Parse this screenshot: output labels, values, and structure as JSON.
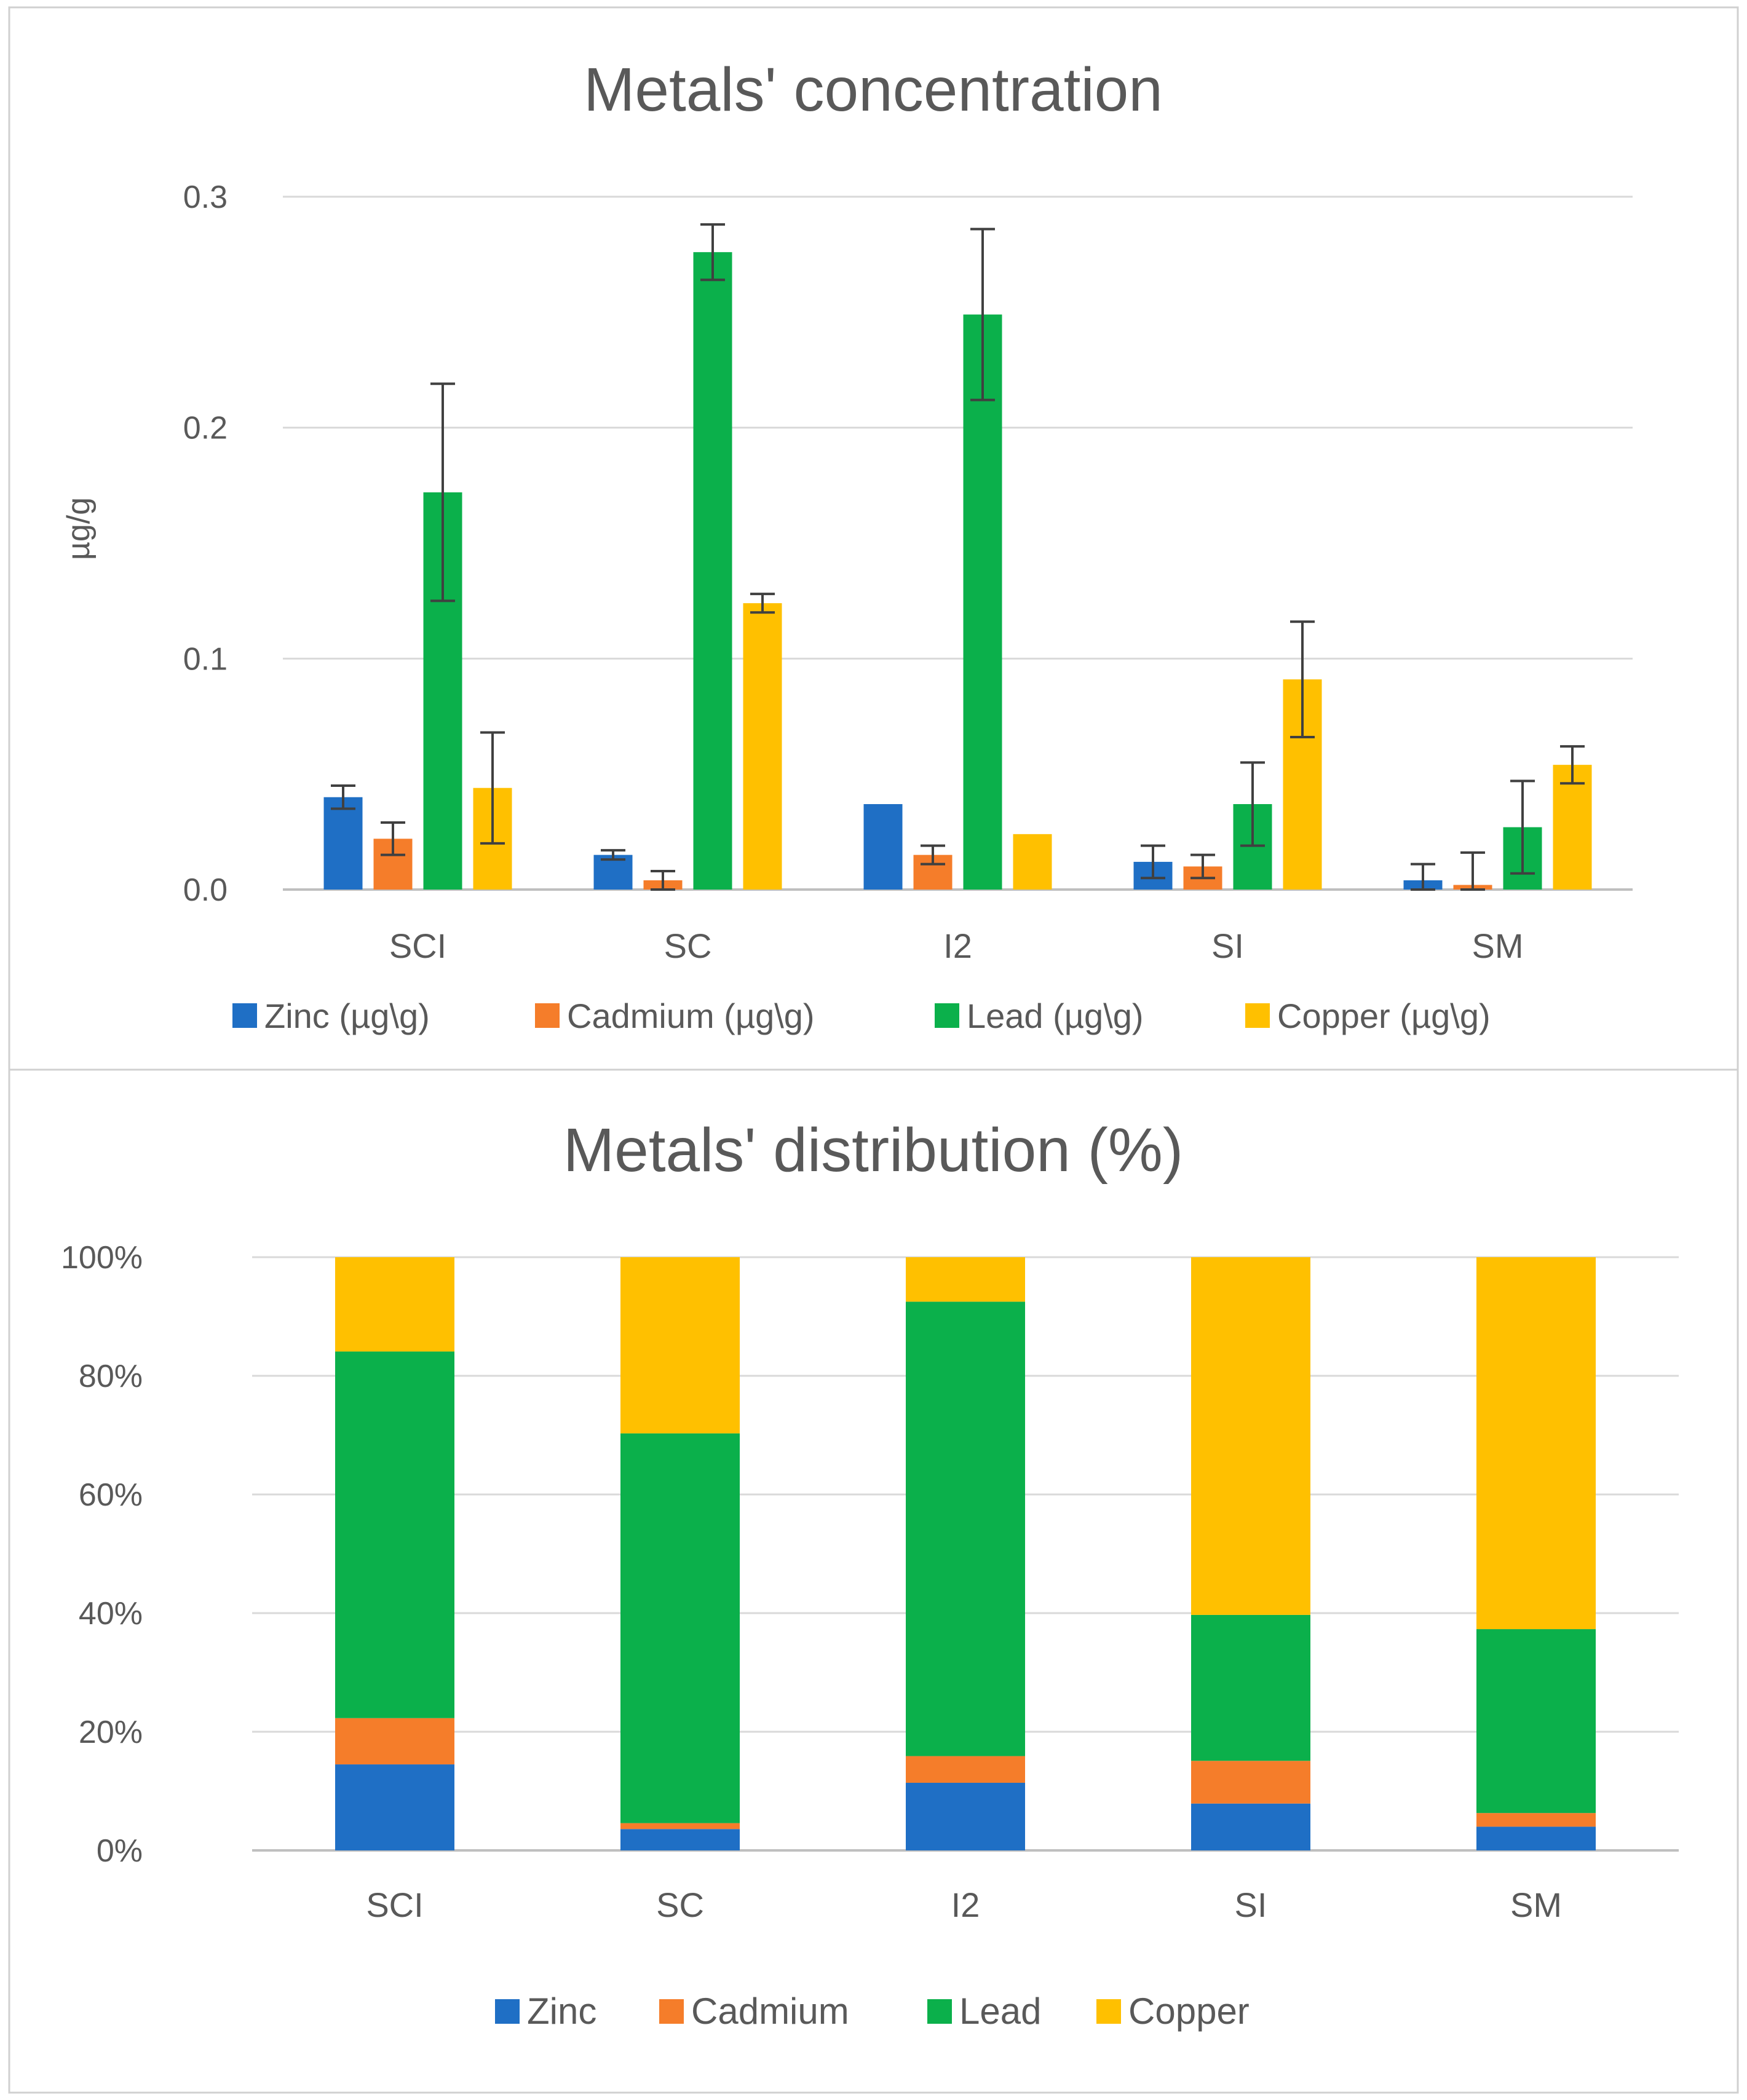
{
  "chart_data": [
    {
      "type": "bar",
      "title": "Metals' concentration",
      "xlabel": "",
      "ylabel": "µg/g",
      "ylim": [
        0,
        0.3
      ],
      "yticks": [
        "0.0",
        "0.1",
        "0.2",
        "0.3"
      ],
      "grid": true,
      "legend_position": "bottom",
      "categories": [
        "SCI",
        "SC",
        "I2",
        "SI",
        "SM"
      ],
      "series": [
        {
          "name": "Zinc (µg\\g)",
          "color": "#1f6fc5",
          "values": [
            0.04,
            0.015,
            0.037,
            0.012,
            0.004
          ],
          "errors": [
            0.005,
            0.002,
            0.0,
            0.007,
            0.007
          ]
        },
        {
          "name": "Cadmium (µg\\g)",
          "color": "#f57d2a",
          "values": [
            0.022,
            0.004,
            0.015,
            0.01,
            0.002
          ],
          "errors": [
            0.007,
            0.004,
            0.004,
            0.005,
            0.014
          ]
        },
        {
          "name": "Lead (µg\\g)",
          "color": "#0bb04b",
          "values": [
            0.172,
            0.276,
            0.249,
            0.037,
            0.027
          ],
          "errors": [
            0.047,
            0.012,
            0.037,
            0.018,
            0.02
          ]
        },
        {
          "name": "Copper (µg\\g)",
          "color": "#ffc000",
          "values": [
            0.044,
            0.124,
            0.024,
            0.091,
            0.054
          ],
          "errors": [
            0.024,
            0.004,
            0.0,
            0.025,
            0.008
          ]
        }
      ]
    },
    {
      "type": "bar",
      "stacked": "percent",
      "title": "Metals' distribution (%)",
      "xlabel": "",
      "ylabel": "",
      "ylim": [
        0,
        100
      ],
      "yticks": [
        "0%",
        "20%",
        "40%",
        "60%",
        "80%",
        "100%"
      ],
      "grid": true,
      "legend_position": "bottom",
      "categories": [
        "SCI",
        "SC",
        "I2",
        "SI",
        "SM"
      ],
      "series": [
        {
          "name": "Zinc",
          "color": "#1f6fc5",
          "values": [
            14.5,
            3.6,
            11.4,
            7.9,
            4.0
          ]
        },
        {
          "name": "Cadmium",
          "color": "#f57d2a",
          "values": [
            7.8,
            1.0,
            4.5,
            7.2,
            2.3
          ]
        },
        {
          "name": "Lead",
          "color": "#0bb04b",
          "values": [
            61.8,
            65.7,
            76.6,
            24.6,
            31.0
          ]
        },
        {
          "name": "Copper",
          "color": "#ffc000",
          "values": [
            15.9,
            29.7,
            7.5,
            60.3,
            62.7
          ]
        }
      ]
    }
  ]
}
